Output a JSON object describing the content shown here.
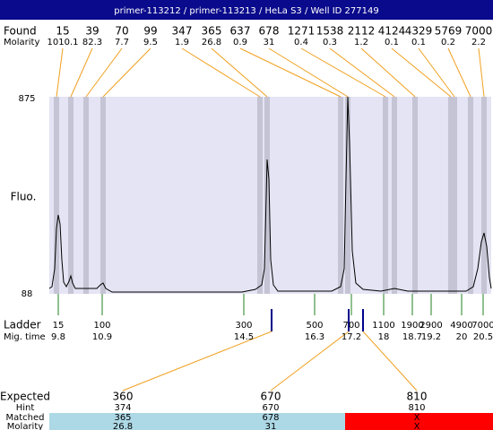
{
  "header": {
    "title": "primer-113212 / primer-113213 / HeLa S3 / Well ID 277149"
  },
  "found": {
    "label": "Found",
    "molarity_label": "Molarity",
    "items": [
      {
        "size": "15",
        "molarity": "1010.1"
      },
      {
        "size": "39",
        "molarity": "82.3"
      },
      {
        "size": "70",
        "molarity": "7.7"
      },
      {
        "size": "99",
        "molarity": "9.5"
      },
      {
        "size": "347",
        "molarity": "1.9"
      },
      {
        "size": "365",
        "molarity": "26.8"
      },
      {
        "size": "637",
        "molarity": "0.9"
      },
      {
        "size": "678",
        "molarity": "31"
      },
      {
        "size": "1271",
        "molarity": "0.4"
      },
      {
        "size": "1538",
        "molarity": "0.3"
      },
      {
        "size": "2112",
        "molarity": "1.2"
      },
      {
        "size": "4124",
        "molarity": "0.1"
      },
      {
        "size": "4329",
        "molarity": "0.1"
      },
      {
        "size": "5769",
        "molarity": "0.2"
      },
      {
        "size": "7000",
        "molarity": "2.2"
      }
    ]
  },
  "plot": {
    "y_max_label": "875",
    "y_min_label": "88",
    "y_label": "Fluo."
  },
  "ladder": {
    "label": "Ladder",
    "mig_label": "Mig. time",
    "items": [
      {
        "size": "15",
        "time": "9.8"
      },
      {
        "size": "100",
        "time": "10.9"
      },
      {
        "size": "300",
        "time": "14.5"
      },
      {
        "size": "500",
        "time": "16.3"
      },
      {
        "size": "700",
        "time": "17.2"
      },
      {
        "size": "1100",
        "time": "18"
      },
      {
        "size": "1900",
        "time": "18.7"
      },
      {
        "size": "2900",
        "time": "19.2"
      },
      {
        "size": "4900",
        "time": "20"
      },
      {
        "size": "7000",
        "time": "20.5"
      }
    ]
  },
  "expected": {
    "row_labels": [
      "Expected",
      "Hint",
      "Matched",
      "Molarity"
    ],
    "columns": [
      {
        "expected": "360",
        "hint": "374",
        "matched": "365",
        "molarity": "26.8"
      },
      {
        "expected": "670",
        "hint": "670",
        "matched": "678",
        "molarity": "31"
      },
      {
        "expected": "810",
        "hint": "810",
        "matched": "X",
        "molarity": "X"
      }
    ]
  }
}
